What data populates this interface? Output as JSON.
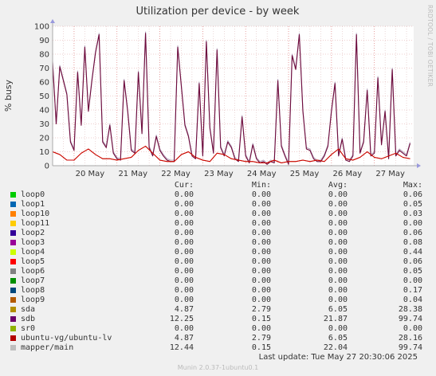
{
  "chart_data": {
    "type": "area",
    "title": "Utilization per device - by week",
    "ylabel": "% busy",
    "ylim": [
      0,
      100
    ],
    "yticks": [
      0,
      10,
      20,
      30,
      40,
      50,
      60,
      70,
      80,
      90,
      100
    ],
    "xlim": [
      "2025-05-19T12:00",
      "2025-05-27T22:00"
    ],
    "xticks": [
      {
        "label": "20 May",
        "at": "2025-05-20T00:00"
      },
      {
        "label": "21 May",
        "at": "2025-05-21T00:00"
      },
      {
        "label": "22 May",
        "at": "2025-05-22T00:00"
      },
      {
        "label": "23 May",
        "at": "2025-05-23T00:00"
      },
      {
        "label": "24 May",
        "at": "2025-05-24T00:00"
      },
      {
        "label": "25 May",
        "at": "2025-05-25T00:00"
      },
      {
        "label": "26 May",
        "at": "2025-05-26T00:00"
      },
      {
        "label": "27 May",
        "at": "2025-05-27T00:00"
      }
    ],
    "grid": true,
    "series": [
      {
        "name": "mapper/main",
        "color": "#b8a8bf",
        "x": [
          "2025-05-19T12:00",
          "2025-05-19T14:00",
          "2025-05-19T16:00",
          "2025-05-19T18:00",
          "2025-05-19T20:00",
          "2025-05-19T22:00",
          "2025-05-20T00:00",
          "2025-05-20T02:00",
          "2025-05-20T04:00",
          "2025-05-20T06:00",
          "2025-05-20T08:00",
          "2025-05-20T10:00",
          "2025-05-20T12:00",
          "2025-05-20T14:00",
          "2025-05-20T16:00",
          "2025-05-20T18:00",
          "2025-05-20T20:00",
          "2025-05-20T22:00",
          "2025-05-21T00:00",
          "2025-05-21T02:00",
          "2025-05-21T04:00",
          "2025-05-21T06:00",
          "2025-05-21T08:00",
          "2025-05-21T10:00",
          "2025-05-21T12:00",
          "2025-05-21T14:00",
          "2025-05-21T16:00",
          "2025-05-21T18:00",
          "2025-05-21T20:00",
          "2025-05-21T22:00",
          "2025-05-22T00:00",
          "2025-05-22T02:00",
          "2025-05-22T04:00",
          "2025-05-22T06:00",
          "2025-05-22T08:00",
          "2025-05-22T10:00",
          "2025-05-22T12:00",
          "2025-05-22T14:00",
          "2025-05-22T16:00",
          "2025-05-22T18:00",
          "2025-05-22T20:00",
          "2025-05-22T22:00",
          "2025-05-23T00:00",
          "2025-05-23T02:00",
          "2025-05-23T04:00",
          "2025-05-23T06:00",
          "2025-05-23T08:00",
          "2025-05-23T10:00",
          "2025-05-23T12:00",
          "2025-05-23T14:00",
          "2025-05-23T16:00",
          "2025-05-23T18:00",
          "2025-05-23T20:00",
          "2025-05-23T22:00",
          "2025-05-24T00:00",
          "2025-05-24T02:00",
          "2025-05-24T04:00",
          "2025-05-24T06:00",
          "2025-05-24T08:00",
          "2025-05-24T10:00",
          "2025-05-24T12:00",
          "2025-05-24T14:00",
          "2025-05-24T16:00",
          "2025-05-24T18:00",
          "2025-05-24T20:00",
          "2025-05-24T22:00",
          "2025-05-25T00:00",
          "2025-05-25T02:00",
          "2025-05-25T04:00",
          "2025-05-25T06:00",
          "2025-05-25T08:00",
          "2025-05-25T10:00",
          "2025-05-25T12:00",
          "2025-05-25T14:00",
          "2025-05-25T16:00",
          "2025-05-25T18:00",
          "2025-05-25T20:00",
          "2025-05-25T22:00",
          "2025-05-26T00:00",
          "2025-05-26T02:00",
          "2025-05-26T04:00",
          "2025-05-26T06:00",
          "2025-05-26T08:00",
          "2025-05-26T10:00",
          "2025-05-26T12:00",
          "2025-05-26T14:00",
          "2025-05-26T16:00",
          "2025-05-26T18:00",
          "2025-05-26T20:00",
          "2025-05-26T22:00",
          "2025-05-27T00:00",
          "2025-05-27T02:00",
          "2025-05-27T04:00",
          "2025-05-27T06:00",
          "2025-05-27T08:00",
          "2025-05-27T10:00",
          "2025-05-27T12:00",
          "2025-05-27T14:00",
          "2025-05-27T16:00",
          "2025-05-27T18:00",
          "2025-05-27T20:00"
        ],
        "values": [
          75,
          30,
          72,
          62,
          52,
          18,
          12,
          68,
          30,
          86,
          40,
          62,
          82,
          95,
          18,
          14,
          30,
          10,
          6,
          5,
          62,
          40,
          12,
          10,
          68,
          24,
          96,
          14,
          8,
          22,
          12,
          8,
          5,
          4,
          4,
          86,
          58,
          30,
          22,
          8,
          6,
          60,
          8,
          90,
          28,
          10,
          84,
          14,
          8,
          18,
          14,
          6,
          4,
          36,
          8,
          3,
          16,
          6,
          3,
          4,
          2,
          4,
          3,
          62,
          15,
          8,
          2,
          80,
          70,
          95,
          40,
          13,
          12,
          6,
          4,
          4,
          8,
          15,
          40,
          60,
          8,
          20,
          5,
          4,
          8,
          95,
          10,
          18,
          55,
          8,
          10,
          64,
          16,
          40,
          6,
          70,
          8,
          12,
          10,
          8,
          17
        ]
      },
      {
        "name": "sdb",
        "color": "#6e0a3c",
        "x": [
          "2025-05-19T12:00",
          "2025-05-19T14:00",
          "2025-05-19T16:00",
          "2025-05-19T18:00",
          "2025-05-19T20:00",
          "2025-05-19T22:00",
          "2025-05-20T00:00",
          "2025-05-20T02:00",
          "2025-05-20T04:00",
          "2025-05-20T06:00",
          "2025-05-20T08:00",
          "2025-05-20T10:00",
          "2025-05-20T12:00",
          "2025-05-20T14:00",
          "2025-05-20T16:00",
          "2025-05-20T18:00",
          "2025-05-20T20:00",
          "2025-05-20T22:00",
          "2025-05-21T00:00",
          "2025-05-21T02:00",
          "2025-05-21T04:00",
          "2025-05-21T06:00",
          "2025-05-21T08:00",
          "2025-05-21T10:00",
          "2025-05-21T12:00",
          "2025-05-21T14:00",
          "2025-05-21T16:00",
          "2025-05-21T18:00",
          "2025-05-21T20:00",
          "2025-05-21T22:00",
          "2025-05-22T00:00",
          "2025-05-22T02:00",
          "2025-05-22T04:00",
          "2025-05-22T06:00",
          "2025-05-22T08:00",
          "2025-05-22T10:00",
          "2025-05-22T12:00",
          "2025-05-22T14:00",
          "2025-05-22T16:00",
          "2025-05-22T18:00",
          "2025-05-22T20:00",
          "2025-05-22T22:00",
          "2025-05-23T00:00",
          "2025-05-23T02:00",
          "2025-05-23T04:00",
          "2025-05-23T06:00",
          "2025-05-23T08:00",
          "2025-05-23T10:00",
          "2025-05-23T12:00",
          "2025-05-23T14:00",
          "2025-05-23T16:00",
          "2025-05-23T18:00",
          "2025-05-23T20:00",
          "2025-05-23T22:00",
          "2025-05-24T00:00",
          "2025-05-24T02:00",
          "2025-05-24T04:00",
          "2025-05-24T06:00",
          "2025-05-24T08:00",
          "2025-05-24T10:00",
          "2025-05-24T12:00",
          "2025-05-24T14:00",
          "2025-05-24T16:00",
          "2025-05-24T18:00",
          "2025-05-24T20:00",
          "2025-05-24T22:00",
          "2025-05-25T00:00",
          "2025-05-25T02:00",
          "2025-05-25T04:00",
          "2025-05-25T06:00",
          "2025-05-25T08:00",
          "2025-05-25T10:00",
          "2025-05-25T12:00",
          "2025-05-25T14:00",
          "2025-05-25T16:00",
          "2025-05-25T18:00",
          "2025-05-25T20:00",
          "2025-05-25T22:00",
          "2025-05-26T00:00",
          "2025-05-26T02:00",
          "2025-05-26T04:00",
          "2025-05-26T06:00",
          "2025-05-26T08:00",
          "2025-05-26T10:00",
          "2025-05-26T12:00",
          "2025-05-26T14:00",
          "2025-05-26T16:00",
          "2025-05-26T18:00",
          "2025-05-26T20:00",
          "2025-05-26T22:00",
          "2025-05-27T00:00",
          "2025-05-27T02:00",
          "2025-05-27T04:00",
          "2025-05-27T06:00",
          "2025-05-27T08:00",
          "2025-05-27T10:00",
          "2025-05-27T12:00",
          "2025-05-27T14:00",
          "2025-05-27T16:00",
          "2025-05-27T18:00",
          "2025-05-27T20:00"
        ],
        "values": [
          74,
          30,
          71,
          61,
          51,
          17,
          11,
          67,
          29,
          85,
          39,
          61,
          81,
          94,
          17,
          13,
          29,
          9,
          5,
          4,
          61,
          39,
          11,
          9,
          67,
          23,
          95,
          13,
          7,
          21,
          11,
          7,
          4,
          3,
          3,
          85,
          57,
          29,
          21,
          7,
          5,
          59,
          7,
          89,
          27,
          9,
          83,
          13,
          7,
          17,
          13,
          5,
          3,
          35,
          7,
          2,
          15,
          5,
          2,
          3,
          1,
          3,
          2,
          61,
          14,
          7,
          1,
          79,
          69,
          94,
          39,
          12,
          11,
          5,
          3,
          3,
          7,
          14,
          39,
          59,
          7,
          19,
          4,
          3,
          7,
          94,
          9,
          17,
          54,
          7,
          9,
          63,
          15,
          39,
          5,
          69,
          7,
          11,
          9,
          7,
          16
        ]
      },
      {
        "name": "sda",
        "color": "#c04000",
        "x": [
          "2025-05-19T12:00",
          "2025-05-19T16:00",
          "2025-05-19T20:00",
          "2025-05-20T00:00",
          "2025-05-20T04:00",
          "2025-05-20T08:00",
          "2025-05-20T12:00",
          "2025-05-20T16:00",
          "2025-05-20T20:00",
          "2025-05-21T00:00",
          "2025-05-21T04:00",
          "2025-05-21T08:00",
          "2025-05-21T12:00",
          "2025-05-21T16:00",
          "2025-05-21T20:00",
          "2025-05-22T00:00",
          "2025-05-22T04:00",
          "2025-05-22T08:00",
          "2025-05-22T12:00",
          "2025-05-22T16:00",
          "2025-05-22T20:00",
          "2025-05-23T00:00",
          "2025-05-23T04:00",
          "2025-05-23T08:00",
          "2025-05-23T12:00",
          "2025-05-23T16:00",
          "2025-05-23T20:00",
          "2025-05-24T00:00",
          "2025-05-24T04:00",
          "2025-05-24T08:00",
          "2025-05-24T12:00",
          "2025-05-24T16:00",
          "2025-05-24T20:00",
          "2025-05-25T00:00",
          "2025-05-25T04:00",
          "2025-05-25T08:00",
          "2025-05-25T12:00",
          "2025-05-25T16:00",
          "2025-05-25T20:00",
          "2025-05-26T00:00",
          "2025-05-26T04:00",
          "2025-05-26T08:00",
          "2025-05-26T12:00",
          "2025-05-26T16:00",
          "2025-05-26T20:00",
          "2025-05-27T00:00",
          "2025-05-27T04:00",
          "2025-05-27T08:00",
          "2025-05-27T12:00",
          "2025-05-27T16:00",
          "2025-05-27T20:00"
        ],
        "values": [
          10,
          8,
          4,
          4,
          9,
          12,
          8,
          5,
          5,
          4,
          5,
          6,
          11,
          14,
          9,
          4,
          3,
          3,
          8,
          10,
          6,
          4,
          3,
          9,
          8,
          5,
          4,
          3,
          3,
          2,
          2,
          4,
          2,
          3,
          3,
          4,
          3,
          4,
          3,
          8,
          12,
          5,
          4,
          6,
          10,
          6,
          5,
          7,
          9,
          6,
          5
        ]
      },
      {
        "name": "ubuntu-vg/ubuntu-lv",
        "color": "#cc0000",
        "x": [
          "2025-05-19T12:00",
          "2025-05-19T16:00",
          "2025-05-19T20:00",
          "2025-05-20T00:00",
          "2025-05-20T04:00",
          "2025-05-20T08:00",
          "2025-05-20T12:00",
          "2025-05-20T16:00",
          "2025-05-20T20:00",
          "2025-05-21T00:00",
          "2025-05-21T04:00",
          "2025-05-21T08:00",
          "2025-05-21T12:00",
          "2025-05-21T16:00",
          "2025-05-21T20:00",
          "2025-05-22T00:00",
          "2025-05-22T04:00",
          "2025-05-22T08:00",
          "2025-05-22T12:00",
          "2025-05-22T16:00",
          "2025-05-22T20:00",
          "2025-05-23T00:00",
          "2025-05-23T04:00",
          "2025-05-23T08:00",
          "2025-05-23T12:00",
          "2025-05-23T16:00",
          "2025-05-23T20:00",
          "2025-05-24T00:00",
          "2025-05-24T04:00",
          "2025-05-24T08:00",
          "2025-05-24T12:00",
          "2025-05-24T16:00",
          "2025-05-24T20:00",
          "2025-05-25T00:00",
          "2025-05-25T04:00",
          "2025-05-25T08:00",
          "2025-05-25T12:00",
          "2025-05-25T16:00",
          "2025-05-25T20:00",
          "2025-05-26T00:00",
          "2025-05-26T04:00",
          "2025-05-26T08:00",
          "2025-05-26T12:00",
          "2025-05-26T16:00",
          "2025-05-26T20:00",
          "2025-05-27T00:00",
          "2025-05-27T04:00",
          "2025-05-27T08:00",
          "2025-05-27T12:00",
          "2025-05-27T16:00",
          "2025-05-27T20:00"
        ],
        "values": [
          10,
          8,
          4,
          4,
          9,
          12,
          8,
          5,
          5,
          4,
          5,
          6,
          11,
          14,
          9,
          4,
          3,
          3,
          8,
          10,
          6,
          4,
          3,
          9,
          8,
          5,
          4,
          3,
          3,
          2,
          2,
          4,
          2,
          3,
          3,
          4,
          3,
          4,
          3,
          8,
          12,
          5,
          4,
          6,
          10,
          6,
          5,
          7,
          9,
          6,
          5
        ]
      }
    ]
  },
  "watermark": "RRDTOOL / TOBI OETIKER",
  "legend": {
    "headers": {
      "cur": "Cur:",
      "min": "Min:",
      "avg": "Avg:",
      "max": "Max:"
    },
    "rows": [
      {
        "name": "loop0",
        "color": "#00cc00",
        "cur": "0.00",
        "min": "0.00",
        "avg": "0.00",
        "max": "0.06"
      },
      {
        "name": "loop1",
        "color": "#0066b3",
        "cur": "0.00",
        "min": "0.00",
        "avg": "0.00",
        "max": "0.05"
      },
      {
        "name": "loop10",
        "color": "#ff8000",
        "cur": "0.00",
        "min": "0.00",
        "avg": "0.00",
        "max": "0.03"
      },
      {
        "name": "loop11",
        "color": "#ffcc00",
        "cur": "0.00",
        "min": "0.00",
        "avg": "0.00",
        "max": "0.00"
      },
      {
        "name": "loop2",
        "color": "#330099",
        "cur": "0.00",
        "min": "0.00",
        "avg": "0.00",
        "max": "0.06"
      },
      {
        "name": "loop3",
        "color": "#990099",
        "cur": "0.00",
        "min": "0.00",
        "avg": "0.00",
        "max": "0.08"
      },
      {
        "name": "loop4",
        "color": "#ccff00",
        "cur": "0.00",
        "min": "0.00",
        "avg": "0.00",
        "max": "0.44"
      },
      {
        "name": "loop5",
        "color": "#ff0000",
        "cur": "0.00",
        "min": "0.00",
        "avg": "0.00",
        "max": "0.06"
      },
      {
        "name": "loop6",
        "color": "#808080",
        "cur": "0.00",
        "min": "0.00",
        "avg": "0.00",
        "max": "0.05"
      },
      {
        "name": "loop7",
        "color": "#008f00",
        "cur": "0.00",
        "min": "0.00",
        "avg": "0.00",
        "max": "0.00"
      },
      {
        "name": "loop8",
        "color": "#00487d",
        "cur": "0.00",
        "min": "0.00",
        "avg": "0.00",
        "max": "0.17"
      },
      {
        "name": "loop9",
        "color": "#b35a00",
        "cur": "0.00",
        "min": "0.00",
        "avg": "0.00",
        "max": "0.04"
      },
      {
        "name": "sda",
        "color": "#b38f00",
        "cur": "4.87",
        "min": "2.79",
        "avg": "6.05",
        "max": "28.38"
      },
      {
        "name": "sdb",
        "color": "#6b006b",
        "cur": "12.25",
        "min": "0.15",
        "avg": "21.87",
        "max": "99.74"
      },
      {
        "name": "sr0",
        "color": "#8fb300",
        "cur": "0.00",
        "min": "0.00",
        "avg": "0.00",
        "max": "0.00"
      },
      {
        "name": "ubuntu-vg/ubuntu-lv",
        "color": "#b30000",
        "cur": "4.87",
        "min": "2.79",
        "avg": "6.05",
        "max": "28.16"
      },
      {
        "name": "mapper/main",
        "color": "#bebebe",
        "cur": "12.44",
        "min": "0.15",
        "avg": "22.04",
        "max": "99.74"
      }
    ]
  },
  "last_update": "Last update: Tue May 27 20:30:06 2025",
  "footer": "Munin 2.0.37-1ubuntu0.1"
}
